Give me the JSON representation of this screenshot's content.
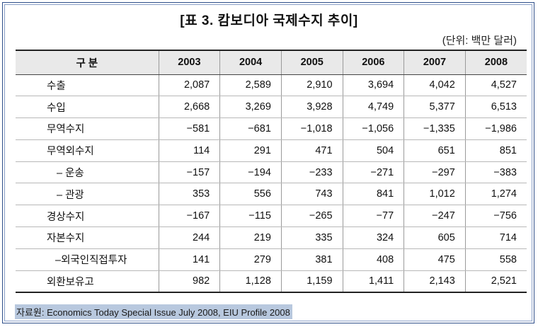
{
  "title": "[표 3. 캄보디아 국제수지 추이]",
  "unit": "(단위: 백만 달러)",
  "table": {
    "header_label": "구 분",
    "years": [
      "2003",
      "2004",
      "2005",
      "2006",
      "2007",
      "2008"
    ],
    "rows": [
      {
        "label": "수출",
        "values": [
          "2,087",
          "2,589",
          "2,910",
          "3,694",
          "4,042",
          "4,527"
        ]
      },
      {
        "label": "수입",
        "values": [
          "2,668",
          "3,269",
          "3,928",
          "4,749",
          "5,377",
          "6,513"
        ]
      },
      {
        "label": "무역수지",
        "values": [
          "−581",
          "−681",
          "−1,018",
          "−1,056",
          "−1,335",
          "−1,986"
        ]
      },
      {
        "label": "무역외수지",
        "values": [
          "114",
          "291",
          "471",
          "504",
          "651",
          "851"
        ]
      },
      {
        "label": "– 운송",
        "values": [
          "−157",
          "−194",
          "−233",
          "−271",
          "−297",
          "−383"
        ]
      },
      {
        "label": "– 관광",
        "values": [
          "353",
          "556",
          "743",
          "841",
          "1,012",
          "1,274"
        ]
      },
      {
        "label": "경상수지",
        "values": [
          "−167",
          "−115",
          "−265",
          "−77",
          "−247",
          "−756"
        ]
      },
      {
        "label": "자본수지",
        "values": [
          "244",
          "219",
          "335",
          "324",
          "605",
          "714"
        ]
      },
      {
        "label": "–외국인직접투자",
        "values": [
          "141",
          "279",
          "381",
          "408",
          "475",
          "558"
        ]
      },
      {
        "label": "외환보유고",
        "values": [
          "982",
          "1,128",
          "1,159",
          "1,411",
          "2,143",
          "2,521"
        ]
      }
    ]
  },
  "source": "자료원: Economics Today Special Issue July 2008, EIU Profile 2008"
}
